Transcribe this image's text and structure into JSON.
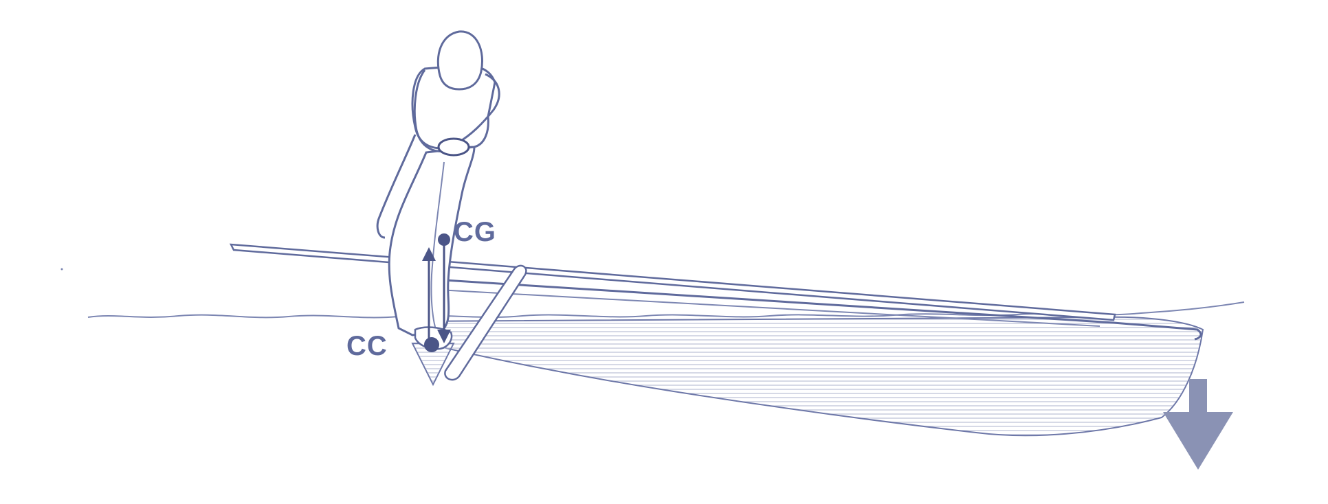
{
  "labels": {
    "cg": "CG",
    "cc": "CC"
  },
  "colors": {
    "ink": "#5f6a9c",
    "arrow": "#8a92b4",
    "water": "#b9bfd6",
    "background": "#ffffff"
  },
  "icons": {
    "big_arrow": "down-arrow-icon",
    "force_arrow": "up-down-double-arrow-icon"
  }
}
